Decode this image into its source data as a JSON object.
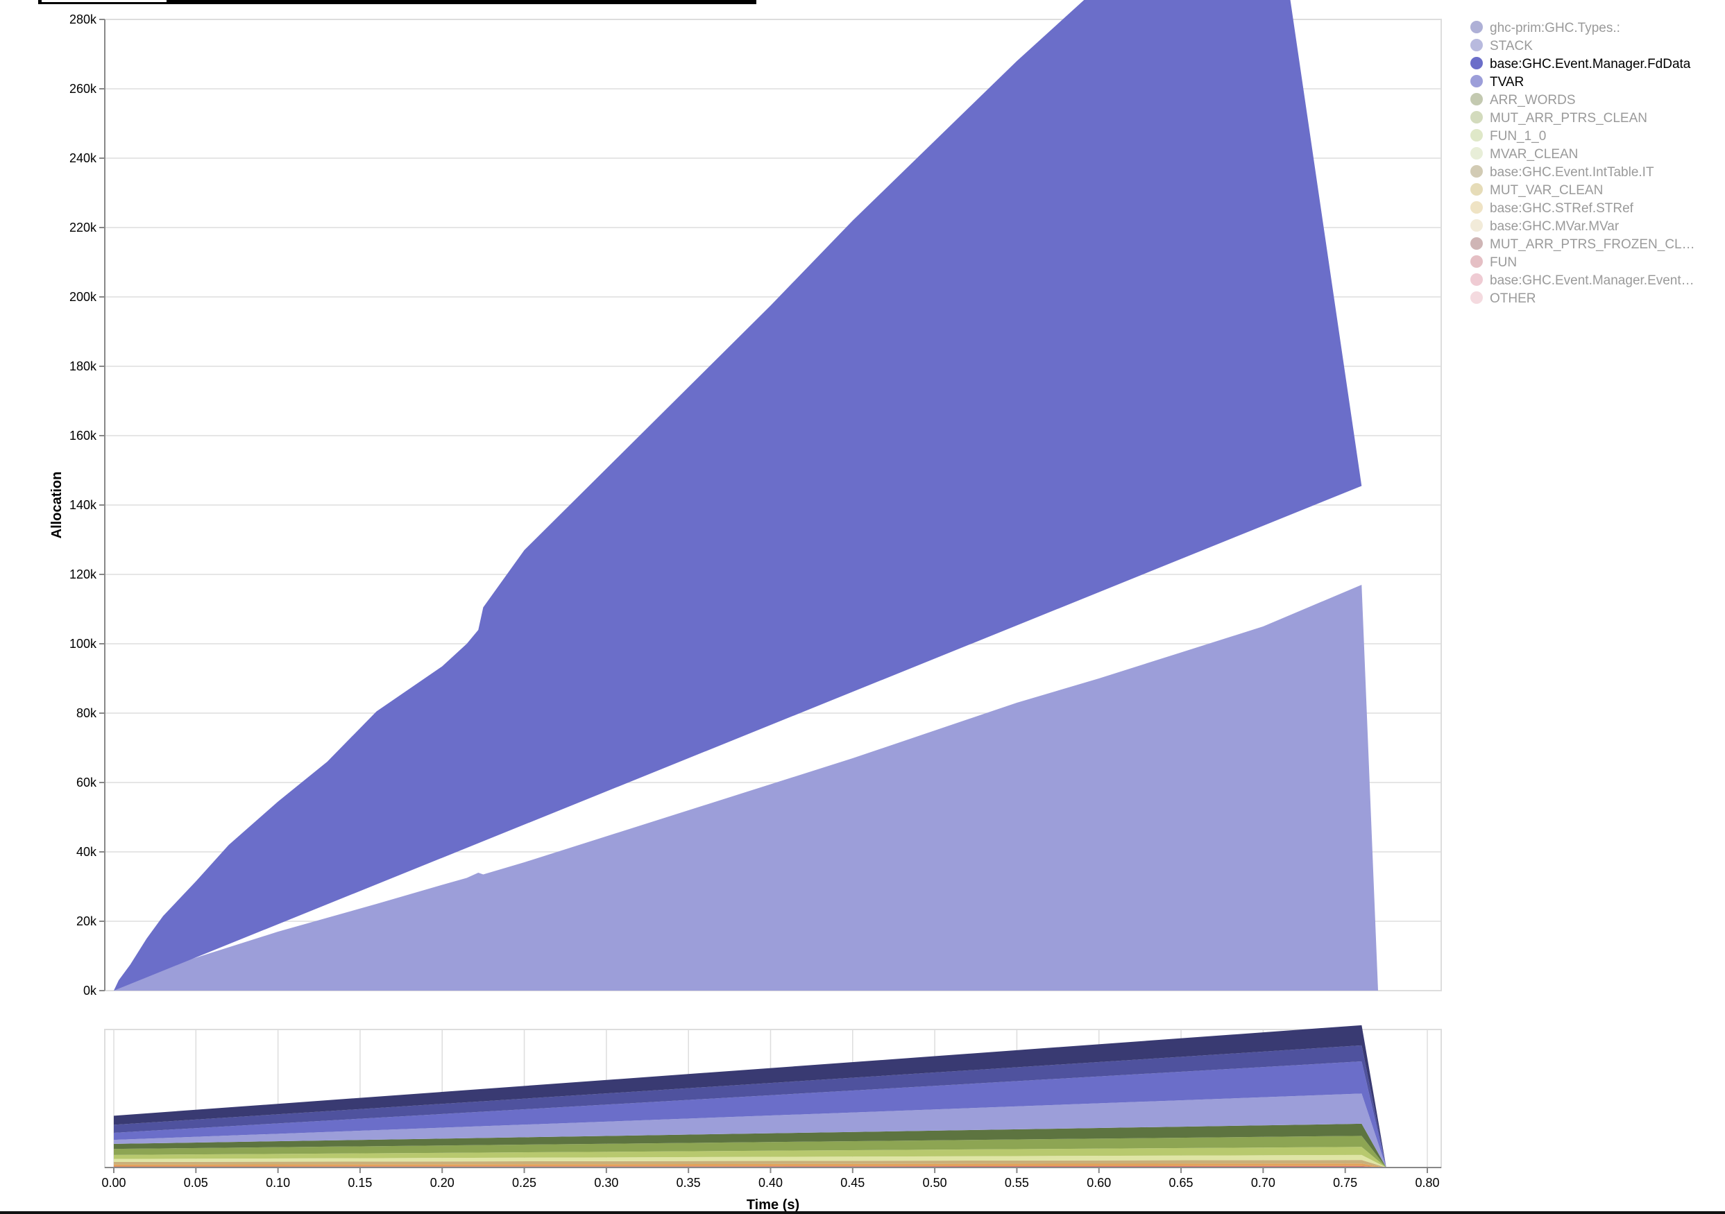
{
  "chart_data": {
    "type": "area",
    "stacked": true,
    "title": "",
    "xlabel": "Time (s)",
    "ylabel": "Allocation",
    "ylim": [
      0,
      280000
    ],
    "xlim": [
      0.0,
      0.8
    ],
    "y_ticks": [
      "0k",
      "20k",
      "40k",
      "60k",
      "80k",
      "100k",
      "120k",
      "140k",
      "160k",
      "180k",
      "200k",
      "220k",
      "240k",
      "260k",
      "280k"
    ],
    "x_ticks": [
      "0.00",
      "0.05",
      "0.10",
      "0.15",
      "0.20",
      "0.25",
      "0.30",
      "0.35",
      "0.40",
      "0.45",
      "0.50",
      "0.55",
      "0.60",
      "0.65",
      "0.70",
      "0.75",
      "0.80"
    ],
    "grid": true,
    "legend_position": "right",
    "legend": [
      {
        "name": "ghc-prim:GHC.Types.:",
        "color": "#aeb0d6",
        "highlighted": false
      },
      {
        "name": "STACK",
        "color": "#b8bade",
        "highlighted": false
      },
      {
        "name": "base:GHC.Event.Manager.FdData",
        "color": "#6b6ec9",
        "highlighted": true
      },
      {
        "name": "TVAR",
        "color": "#9c9ed9",
        "highlighted": true
      },
      {
        "name": "ARR_WORDS",
        "color": "#c3c9b0",
        "highlighted": false
      },
      {
        "name": "MUT_ARR_PTRS_CLEAN",
        "color": "#d3dbbd",
        "highlighted": false
      },
      {
        "name": "FUN_1_0",
        "color": "#dfe8c8",
        "highlighted": false
      },
      {
        "name": "MVAR_CLEAN",
        "color": "#e8eed8",
        "highlighted": false
      },
      {
        "name": "base:GHC.Event.IntTable.IT",
        "color": "#d2cbb4",
        "highlighted": false
      },
      {
        "name": "MUT_VAR_CLEAN",
        "color": "#e6dcb8",
        "highlighted": false
      },
      {
        "name": "base:GHC.STRef.STRef",
        "color": "#efe3c4",
        "highlighted": false
      },
      {
        "name": "base:GHC.MVar.MVar",
        "color": "#f2ebd9",
        "highlighted": false
      },
      {
        "name": "MUT_ARR_PTRS_FROZEN_CL…",
        "color": "#cfb5b5",
        "highlighted": false
      },
      {
        "name": "FUN",
        "color": "#e5bfc4",
        "highlighted": false
      },
      {
        "name": "base:GHC.Event.Manager.Event…",
        "color": "#efcbd3",
        "highlighted": false
      },
      {
        "name": "OTHER",
        "color": "#f4dadf",
        "highlighted": false
      }
    ],
    "series": [
      {
        "name": "TVAR",
        "color": "#9c9ed9",
        "points": [
          [
            0.0,
            0
          ],
          [
            0.003,
            1000
          ],
          [
            0.01,
            3000
          ],
          [
            0.03,
            6500
          ],
          [
            0.05,
            9500
          ],
          [
            0.07,
            12500
          ],
          [
            0.1,
            17000
          ],
          [
            0.13,
            21000
          ],
          [
            0.16,
            25000
          ],
          [
            0.2,
            30500
          ],
          [
            0.215,
            32500
          ],
          [
            0.222,
            34000
          ],
          [
            0.225,
            33500
          ],
          [
            0.25,
            37000
          ],
          [
            0.3,
            44500
          ],
          [
            0.35,
            52000
          ],
          [
            0.4,
            59500
          ],
          [
            0.45,
            67000
          ],
          [
            0.5,
            75000
          ],
          [
            0.55,
            83000
          ],
          [
            0.6,
            90000
          ],
          [
            0.65,
            97500
          ],
          [
            0.7,
            105000
          ],
          [
            0.76,
            117000
          ],
          [
            0.77,
            0
          ]
        ]
      },
      {
        "name": "base:GHC.Event.Manager.FdData",
        "color": "#6b6ec9",
        "points": [
          [
            0.0,
            0
          ],
          [
            0.003,
            2000
          ],
          [
            0.01,
            4500
          ],
          [
            0.02,
            8500
          ],
          [
            0.03,
            12000
          ],
          [
            0.05,
            19000
          ],
          [
            0.07,
            25000
          ],
          [
            0.1,
            33500
          ],
          [
            0.13,
            41000
          ],
          [
            0.16,
            50000
          ],
          [
            0.2,
            61000
          ],
          [
            0.215,
            66000
          ],
          [
            0.222,
            70500
          ],
          [
            0.225,
            73500
          ],
          [
            0.25,
            82500
          ],
          [
            0.3,
            98500
          ],
          [
            0.35,
            114500
          ],
          [
            0.4,
            130500
          ],
          [
            0.45,
            147000
          ],
          [
            0.5,
            162000
          ],
          [
            0.55,
            178000
          ],
          [
            0.6,
            192000
          ],
          [
            0.65,
            207000
          ],
          [
            0.7,
            222000
          ],
          [
            0.76,
            145500
          ],
          [
            0.77,
            0
          ]
        ]
      }
    ],
    "overview": {
      "layers": [
        {
          "color": "#d86e6e",
          "start": 1.0,
          "end": 1.5
        },
        {
          "color": "#e2a25a",
          "start": 2.0,
          "end": 2.5
        },
        {
          "color": "#c9b07a",
          "start": 2.5,
          "end": 3.5
        },
        {
          "color": "#dfe5a5",
          "start": 3.0,
          "end": 5.0
        },
        {
          "color": "#b8c96e",
          "start": 4.0,
          "end": 8.0
        },
        {
          "color": "#8da553",
          "start": 6.0,
          "end": 11.0
        },
        {
          "color": "#5d7440",
          "start": 5.0,
          "end": 12.0
        },
        {
          "color": "#9c9ed9",
          "start": 4.0,
          "end": 30.0
        },
        {
          "color": "#6b6ec9",
          "start": 7.0,
          "end": 32.0
        },
        {
          "color": "#4f529e",
          "start": 8.0,
          "end": 16.0
        },
        {
          "color": "#393a72",
          "start": 9.0,
          "end": 20.0
        }
      ]
    }
  }
}
